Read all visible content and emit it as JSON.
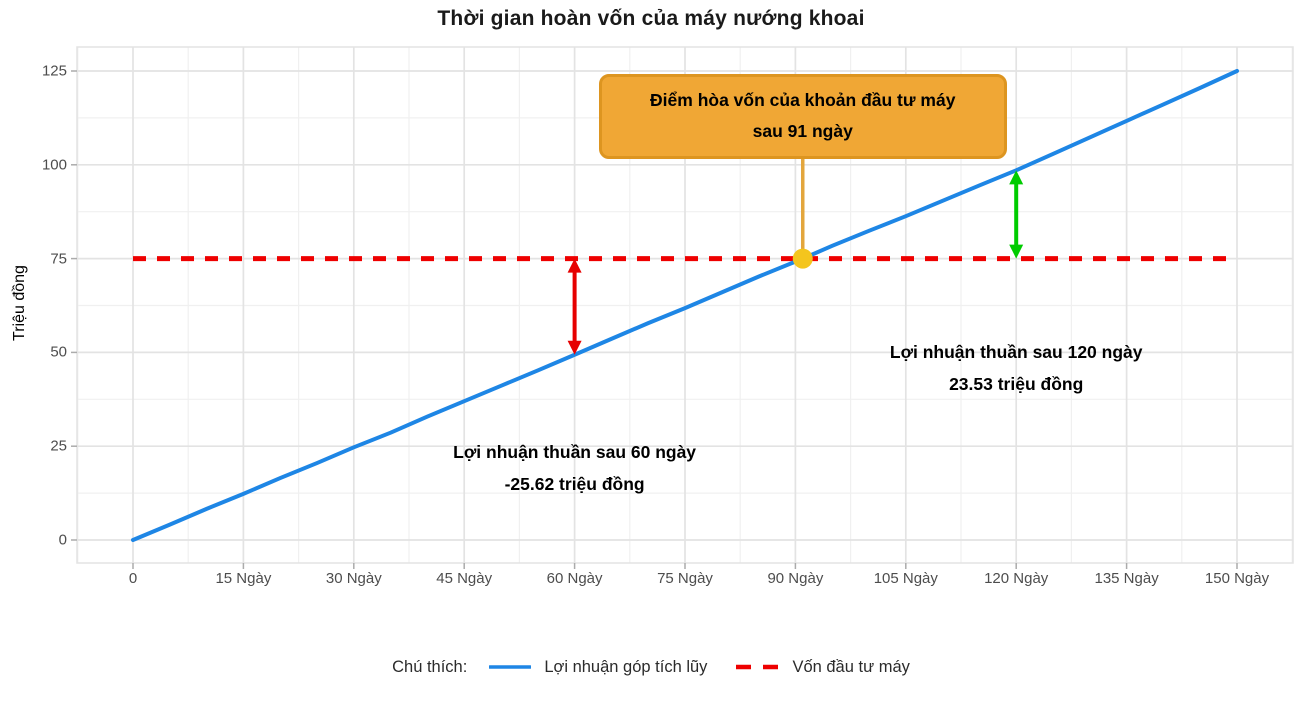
{
  "chart_data": {
    "type": "line",
    "title": "Thời gian hoàn vốn của máy nướng khoai",
    "xlabel": "",
    "ylabel": "Triệu đồng",
    "xlim": [
      0,
      150
    ],
    "ylim": [
      0,
      125
    ],
    "grid": "major+minor",
    "legend_position": "bottom",
    "x_tick_values": [
      0,
      15,
      30,
      45,
      60,
      75,
      90,
      105,
      120,
      135,
      150
    ],
    "x_tick_labels": [
      "0",
      "15 Ngày",
      "30 Ngày",
      "45 Ngày",
      "60 Ngày",
      "75 Ngày",
      "90 Ngày",
      "105 Ngày",
      "120 Ngày",
      "135 Ngày",
      "150 Ngày"
    ],
    "y_tick_values": [
      0,
      25,
      50,
      75,
      100,
      125
    ],
    "series": [
      {
        "name": "Lợi nhuận góp tích lũy",
        "kind": "line",
        "color": "#1E86E5",
        "x": [
          0,
          5,
          10,
          15,
          20,
          25,
          30,
          35,
          40,
          45,
          50,
          55,
          60,
          65,
          70,
          75,
          80,
          85,
          90,
          91,
          95,
          100,
          105,
          110,
          115,
          120,
          125,
          130,
          135,
          140,
          145,
          150
        ],
        "y": [
          0,
          4.1,
          8.3,
          12.3,
          16.5,
          20.5,
          24.7,
          28.6,
          32.9,
          37.0,
          41.1,
          45.2,
          49.38,
          53.6,
          57.8,
          61.8,
          66.0,
          70.2,
          74.2,
          75.0,
          78.4,
          82.4,
          86.3,
          90.4,
          94.5,
          98.53,
          102.9,
          107.3,
          111.7,
          116.1,
          120.5,
          125.0
        ]
      },
      {
        "name": "Vốn đầu tư máy",
        "kind": "hline",
        "style": "dashed",
        "color": "#EE0000",
        "y": 75
      }
    ],
    "breakeven_point": {
      "x": 91,
      "y": 75,
      "label_line1": "Điểm hòa vốn của khoản đầu tư máy",
      "label_line2": "sau 91 ngày",
      "box_fill": "#F0A735",
      "box_border": "#DD9520",
      "connector_color": "#E3A63C",
      "marker_color": "#F4C51D"
    },
    "arrow_annotations": [
      {
        "x": 60,
        "y_from": 75,
        "y_to": 49.38,
        "color": "#E60000",
        "line1": "Lợi nhuận thuần sau 60 ngày",
        "line2": "-25.62 triệu đồng"
      },
      {
        "x": 120,
        "y_from": 98.53,
        "y_to": 75,
        "color": "#00CC00",
        "line1": "Lợi nhuận thuần sau 120 ngày",
        "line2": "23.53 triệu đồng"
      }
    ],
    "legend": {
      "title": "Chú thích:",
      "items": [
        {
          "label": "Lợi nhuận góp tích lũy",
          "color": "#1E86E5",
          "style": "solid"
        },
        {
          "label": "Vốn đầu tư máy",
          "color": "#EE0000",
          "style": "dashed"
        }
      ]
    },
    "colors": {
      "grid_major": "#E3E3E3",
      "grid_minor": "#F0F0F0",
      "tick_mark": "#ABABAB",
      "tick_label": "#4D4D4D"
    }
  }
}
